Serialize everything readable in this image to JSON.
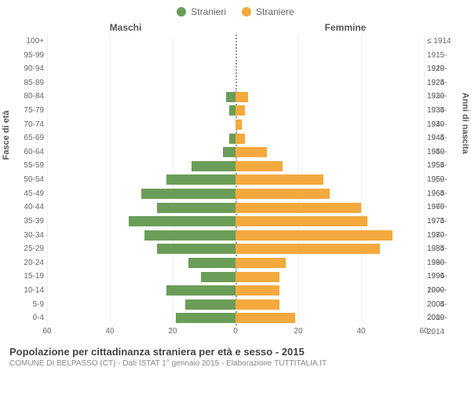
{
  "legend": {
    "male": {
      "label": "Stranieri",
      "color": "#6a9e58"
    },
    "female": {
      "label": "Straniere",
      "color": "#f4a93e"
    }
  },
  "headers": {
    "male": "Maschi",
    "female": "Femmine"
  },
  "axis_titles": {
    "left": "Fasce di età",
    "right": "Anni di nascita"
  },
  "x_axis": {
    "max": 60,
    "ticks": [
      60,
      40,
      20,
      0,
      20,
      40,
      60
    ]
  },
  "grid_color": "#eeeeee",
  "center_line_color": "#999999",
  "background_color": "#ffffff",
  "label_fontsize": 10,
  "title_fontsize": 13,
  "type": "population-pyramid",
  "rows": [
    {
      "age": "100+",
      "birth": "≤ 1914",
      "m": 0,
      "f": 0
    },
    {
      "age": "95-99",
      "birth": "1915-1919",
      "m": 0,
      "f": 0
    },
    {
      "age": "90-94",
      "birth": "1920-1924",
      "m": 0,
      "f": 0
    },
    {
      "age": "85-89",
      "birth": "1925-1929",
      "m": 0,
      "f": 0
    },
    {
      "age": "80-84",
      "birth": "1930-1934",
      "m": 3,
      "f": 4
    },
    {
      "age": "75-79",
      "birth": "1935-1939",
      "m": 2,
      "f": 3
    },
    {
      "age": "70-74",
      "birth": "1940-1944",
      "m": 0,
      "f": 2
    },
    {
      "age": "65-69",
      "birth": "1945-1949",
      "m": 2,
      "f": 3
    },
    {
      "age": "60-64",
      "birth": "1950-1954",
      "m": 4,
      "f": 10
    },
    {
      "age": "55-59",
      "birth": "1955-1959",
      "m": 14,
      "f": 15
    },
    {
      "age": "50-54",
      "birth": "1960-1964",
      "m": 22,
      "f": 28
    },
    {
      "age": "45-49",
      "birth": "1965-1969",
      "m": 30,
      "f": 30
    },
    {
      "age": "40-44",
      "birth": "1970-1974",
      "m": 25,
      "f": 40
    },
    {
      "age": "35-39",
      "birth": "1975-1979",
      "m": 34,
      "f": 42
    },
    {
      "age": "30-34",
      "birth": "1980-1984",
      "m": 29,
      "f": 50
    },
    {
      "age": "25-29",
      "birth": "1985-1989",
      "m": 25,
      "f": 46
    },
    {
      "age": "20-24",
      "birth": "1990-1994",
      "m": 15,
      "f": 16
    },
    {
      "age": "15-19",
      "birth": "1995-1999",
      "m": 11,
      "f": 14
    },
    {
      "age": "10-14",
      "birth": "2000-2004",
      "m": 22,
      "f": 14
    },
    {
      "age": "5-9",
      "birth": "2005-2009",
      "m": 16,
      "f": 14
    },
    {
      "age": "0-4",
      "birth": "2010-2014",
      "m": 19,
      "f": 19
    }
  ],
  "footer": {
    "title": "Popolazione per cittadinanza straniera per età e sesso - 2015",
    "subtitle": "COMUNE DI BELPASSO (CT) - Dati ISTAT 1° gennaio 2015 - Elaborazione TUTTITALIA.IT"
  }
}
